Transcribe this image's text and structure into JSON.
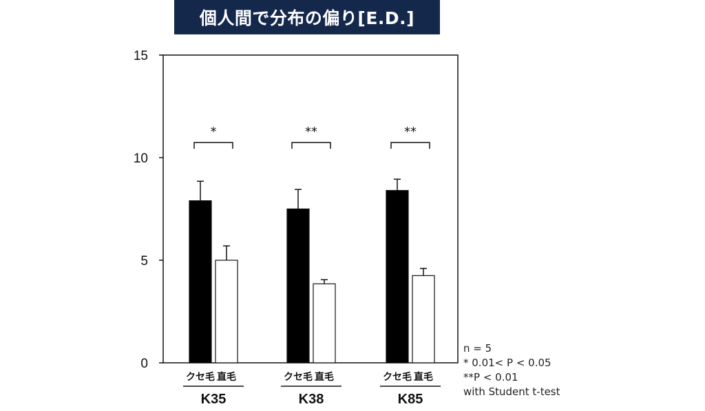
{
  "title": "個人間で分布の偏り[E.D.]",
  "chart_data": {
    "type": "bar",
    "title": "個人間で分布の偏り[E.D.]",
    "ylim": [
      0,
      15
    ],
    "yticks": [
      "0",
      "5",
      "10",
      "15"
    ],
    "ytick_values": [
      0,
      5,
      10,
      15
    ],
    "groups": [
      {
        "label": "K35",
        "significance": "*"
      },
      {
        "label": "K38",
        "significance": "**"
      },
      {
        "label": "K85",
        "significance": "**"
      }
    ],
    "series": [
      {
        "name": "クセ毛",
        "color": "#000000",
        "values": [
          7.9,
          7.5,
          8.4
        ],
        "errors": [
          0.95,
          0.95,
          0.55
        ]
      },
      {
        "name": "直毛",
        "color": "#ffffff",
        "values": [
          5.0,
          3.85,
          4.25
        ],
        "errors": [
          0.7,
          0.2,
          0.35
        ]
      }
    ],
    "notes": [
      "n = 5",
      "* 0.01< P < 0.05",
      "**P < 0.01",
      "with Student t-test"
    ]
  }
}
